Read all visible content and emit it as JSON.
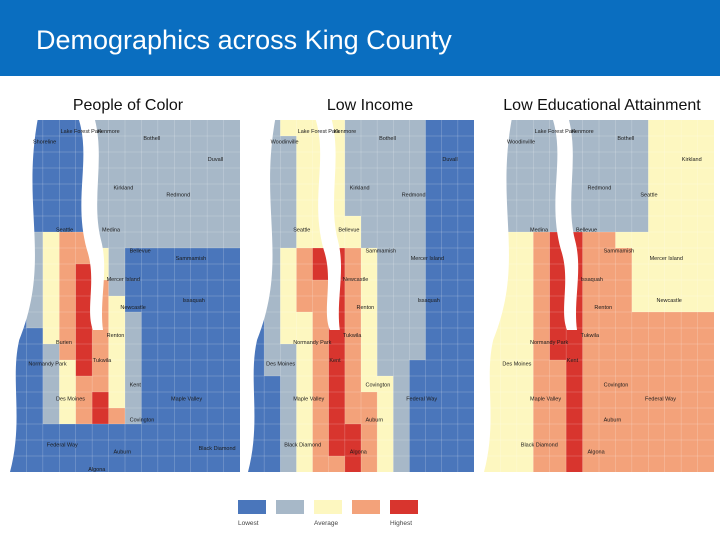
{
  "title": "Demographics across King County",
  "legend": {
    "colors": [
      "#4a76bb",
      "#a7b8c8",
      "#fdf7c0",
      "#f3a27a",
      "#d8352e"
    ],
    "low_label": "Lowest",
    "mid_label": "Average",
    "high_label": "Highest"
  },
  "maps": [
    {
      "label": "People of Color",
      "places": [
        "Lake Forest Park",
        "Kenmore",
        "Bothell",
        "Shoreline",
        "Duvall",
        "Kirkland",
        "Redmond",
        "Seattle",
        "Medina",
        "Bellevue",
        "Sammamish",
        "Mercer Island",
        "Issaquah",
        "Newcastle",
        "Renton",
        "Burien",
        "Tukwila",
        "Normandy Park",
        "Kent",
        "Des Moines",
        "Maple Valley",
        "Covington",
        "Federal Way",
        "Auburn",
        "Black Diamond",
        "Algona"
      ]
    },
    {
      "label": "Low Income",
      "places": [
        "Lake Forest Park",
        "Kenmore",
        "Bothell",
        "Woodinville",
        "Duvall",
        "Kirkland",
        "Redmond",
        "Seattle",
        "Bellevue",
        "Sammamish",
        "Mercer Island",
        "Newcastle",
        "Issaquah",
        "Renton",
        "Tukwila",
        "Normandy Park",
        "Kent",
        "Des Moines",
        "Covington",
        "Maple Valley",
        "Federal Way",
        "Auburn",
        "Black Diamond",
        "Algona"
      ]
    },
    {
      "label": "Low Educational Attainment",
      "places": [
        "Lake Forest Park",
        "Kenmore",
        "Bothell",
        "Woodinville",
        "Kirkland",
        "Redmond",
        "Seattle",
        "Medina",
        "Bellevue",
        "Sammamish",
        "Mercer Island",
        "Issaquah",
        "Newcastle",
        "Renton",
        "Tukwila",
        "Normandy Park",
        "Kent",
        "Des Moines",
        "Covington",
        "Maple Valley",
        "Federal Way",
        "Auburn",
        "Black Diamond",
        "Algona"
      ]
    }
  ]
}
